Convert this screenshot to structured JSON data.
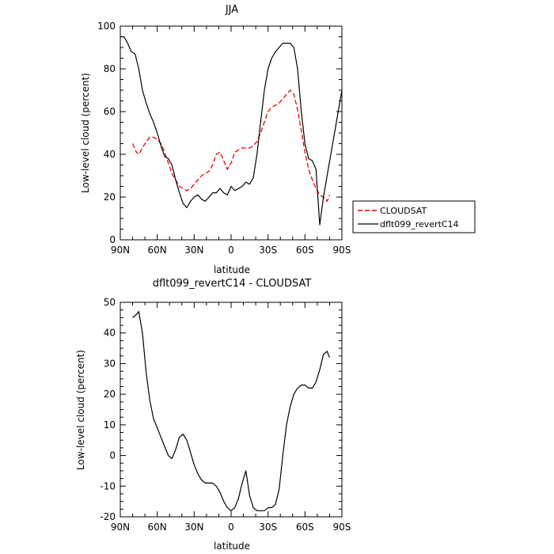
{
  "chart_data": [
    {
      "type": "line",
      "title": "JJA",
      "xlabel": "latitude",
      "ylabel": "Low-level cloud (percent)",
      "xlim": [
        90,
        -90
      ],
      "ylim": [
        0,
        100
      ],
      "x_ticks": [
        90,
        60,
        30,
        0,
        -30,
        -60,
        -90
      ],
      "x_tick_labels": [
        "90N",
        "60N",
        "30N",
        "0",
        "30S",
        "60S",
        "90S"
      ],
      "y_ticks": [
        0,
        20,
        40,
        60,
        80,
        100
      ],
      "y_tick_labels": [
        "0",
        "20",
        "40",
        "60",
        "80",
        "100"
      ],
      "legend_position": "right",
      "series": [
        {
          "name": "CLOUDSAT",
          "color": "#e60000",
          "dash": "dashed",
          "x": [
            80,
            77,
            75,
            72,
            69,
            66,
            63,
            60,
            57,
            54,
            51,
            48,
            45,
            42,
            39,
            36,
            33,
            30,
            27,
            24,
            21,
            18,
            15,
            12,
            9,
            6,
            3,
            0,
            -3,
            -6,
            -9,
            -12,
            -15,
            -18,
            -21,
            -24,
            -27,
            -30,
            -33,
            -36,
            -39,
            -42,
            -45,
            -48,
            -51,
            -54,
            -57,
            -60,
            -63,
            -66,
            -69,
            -72,
            -75,
            -78,
            -80
          ],
          "y": [
            45,
            41,
            40,
            43,
            46,
            48,
            48,
            47,
            45,
            41,
            36,
            31,
            28,
            25,
            24,
            23,
            24,
            26,
            28,
            30,
            31,
            32,
            35,
            40,
            41,
            37,
            33,
            36,
            41,
            42,
            43,
            43,
            43,
            44,
            46,
            50,
            55,
            60,
            62,
            63,
            64,
            66,
            68,
            70,
            68,
            61,
            51,
            41,
            33,
            28,
            24,
            21,
            20,
            18,
            21
          ]
        },
        {
          "name": "dflt099_revertC14",
          "color": "#000000",
          "dash": "solid",
          "x": [
            90,
            87,
            84,
            81,
            78,
            75,
            72,
            69,
            66,
            63,
            60,
            57,
            54,
            51,
            48,
            45,
            42,
            39,
            36,
            33,
            30,
            27,
            24,
            21,
            18,
            15,
            12,
            9,
            6,
            3,
            0,
            -3,
            -6,
            -9,
            -12,
            -15,
            -18,
            -21,
            -24,
            -27,
            -30,
            -33,
            -36,
            -39,
            -42,
            -45,
            -48,
            -51,
            -54,
            -57,
            -60,
            -63,
            -66,
            -69,
            -72,
            -75,
            -78,
            -81,
            -84,
            -87,
            -90
          ],
          "y": [
            95,
            95,
            92,
            88,
            87,
            80,
            70,
            64,
            59,
            55,
            50,
            44,
            39,
            38,
            35,
            28,
            22,
            17,
            15,
            18,
            20,
            21,
            19,
            18,
            20,
            22,
            22,
            24,
            22,
            21,
            25,
            23,
            24,
            25,
            27,
            26,
            29,
            40,
            55,
            70,
            80,
            85,
            88,
            90,
            92,
            92,
            92,
            90,
            80,
            60,
            45,
            38,
            37,
            33,
            7,
            20,
            30,
            40,
            50,
            60,
            70
          ]
        }
      ]
    },
    {
      "type": "line",
      "title": "dflt099_revertC14 - CLOUDSAT",
      "xlabel": "latitude",
      "ylabel": "Low-level cloud (percent)",
      "xlim": [
        90,
        -90
      ],
      "ylim": [
        -20,
        50
      ],
      "x_ticks": [
        90,
        60,
        30,
        0,
        -30,
        -60,
        -90
      ],
      "x_tick_labels": [
        "90N",
        "60N",
        "30N",
        "0",
        "30S",
        "60S",
        "90S"
      ],
      "y_ticks": [
        -20,
        -10,
        0,
        10,
        20,
        30,
        40,
        50
      ],
      "y_tick_labels": [
        "-20",
        "-10",
        "0",
        "10",
        "20",
        "30",
        "40",
        "50"
      ],
      "series": [
        {
          "color": "#000000",
          "dash": "solid",
          "x": [
            80,
            77,
            75,
            72,
            69,
            66,
            63,
            60,
            57,
            54,
            51,
            48,
            45,
            42,
            39,
            36,
            33,
            30,
            27,
            24,
            21,
            18,
            15,
            12,
            9,
            6,
            3,
            0,
            -3,
            -6,
            -9,
            -12,
            -15,
            -18,
            -21,
            -24,
            -27,
            -30,
            -33,
            -36,
            -39,
            -42,
            -45,
            -48,
            -51,
            -54,
            -57,
            -60,
            -63,
            -66,
            -69,
            -72,
            -75,
            -78,
            -80
          ],
          "y": [
            45,
            46,
            47,
            40,
            27,
            18,
            12,
            9,
            6,
            3,
            0,
            -1,
            2,
            6,
            7,
            5,
            1,
            -3,
            -6,
            -8,
            -9,
            -9,
            -9,
            -10,
            -12,
            -15,
            -17,
            -18,
            -17,
            -14,
            -9,
            -5,
            -13,
            -17,
            -18,
            -18,
            -18,
            -17,
            -17,
            -16,
            -11,
            0,
            10,
            16,
            20,
            22,
            23,
            23,
            22,
            22,
            24,
            28,
            33,
            34,
            32
          ]
        }
      ]
    }
  ]
}
